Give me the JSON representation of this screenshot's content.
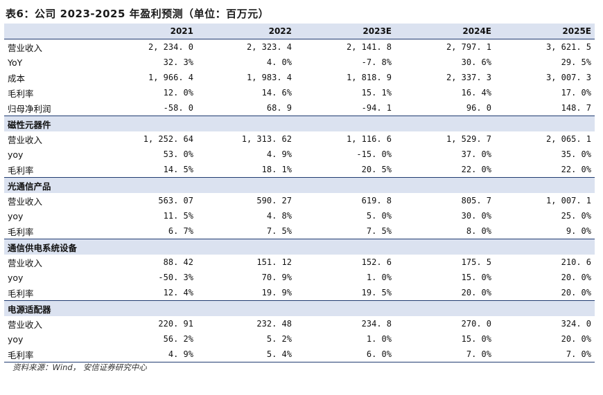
{
  "title": "表6：公司 2023-2025 年盈利预测（单位：百万元）",
  "columns": [
    "2021",
    "2022",
    "2023E",
    "2024E",
    "2025E"
  ],
  "summary_rows": [
    {
      "label": "营业收入",
      "values": [
        "2, 234. 0",
        "2, 323. 4",
        "2, 141. 8",
        "2, 797. 1",
        "3, 621. 5"
      ]
    },
    {
      "label": "YoY",
      "values": [
        "32. 3%",
        "4. 0%",
        "-7. 8%",
        "30. 6%",
        "29. 5%"
      ]
    },
    {
      "label": "成本",
      "values": [
        "1, 966. 4",
        "1, 983. 4",
        "1, 818. 9",
        "2, 337. 3",
        "3, 007. 3"
      ]
    },
    {
      "label": "毛利率",
      "values": [
        "12. 0%",
        "14. 6%",
        "15. 1%",
        "16. 4%",
        "17. 0%"
      ]
    },
    {
      "label": "归母净利润",
      "values": [
        "-58. 0",
        "68. 9",
        "-94. 1",
        "96. 0",
        "148. 7"
      ]
    }
  ],
  "sections": [
    {
      "name": "磁性元器件",
      "rows": [
        {
          "label": "营业收入",
          "values": [
            "1, 252. 64",
            "1, 313. 62",
            "1, 116. 6",
            "1, 529. 7",
            "2, 065. 1"
          ]
        },
        {
          "label": "yoy",
          "values": [
            "53. 0%",
            "4. 9%",
            "-15. 0%",
            "37. 0%",
            "35. 0%"
          ]
        },
        {
          "label": "毛利率",
          "values": [
            "14. 5%",
            "18. 1%",
            "20. 5%",
            "22. 0%",
            "22. 0%"
          ]
        }
      ]
    },
    {
      "name": "光通信产品",
      "rows": [
        {
          "label": "营业收入",
          "values": [
            "563. 07",
            "590. 27",
            "619. 8",
            "805. 7",
            "1, 007. 1"
          ]
        },
        {
          "label": "yoy",
          "values": [
            "11. 5%",
            "4. 8%",
            "5. 0%",
            "30. 0%",
            "25. 0%"
          ]
        },
        {
          "label": "毛利率",
          "values": [
            "6. 7%",
            "7. 5%",
            "7. 5%",
            "8. 0%",
            "9. 0%"
          ]
        }
      ]
    },
    {
      "name": "通信供电系统设备",
      "rows": [
        {
          "label": "营业收入",
          "values": [
            "88. 42",
            "151. 12",
            "152. 6",
            "175. 5",
            "210. 6"
          ]
        },
        {
          "label": "yoy",
          "values": [
            "-50. 3%",
            "70. 9%",
            "1. 0%",
            "15. 0%",
            "20. 0%"
          ]
        },
        {
          "label": "毛利率",
          "values": [
            "12. 4%",
            "19. 9%",
            "19. 5%",
            "20. 0%",
            "20. 0%"
          ]
        }
      ]
    },
    {
      "name": "电源适配器",
      "rows": [
        {
          "label": "营业收入",
          "values": [
            "220. 91",
            "232. 48",
            "234. 8",
            "270. 0",
            "324. 0"
          ]
        },
        {
          "label": "yoy",
          "values": [
            "56. 2%",
            "5. 2%",
            "1. 0%",
            "15. 0%",
            "20. 0%"
          ]
        },
        {
          "label": "毛利率",
          "values": [
            "4. 9%",
            "5. 4%",
            "6. 0%",
            "7. 0%",
            "7. 0%"
          ]
        }
      ]
    }
  ],
  "source": "资料来源：Wind， 安信证券研究中心"
}
